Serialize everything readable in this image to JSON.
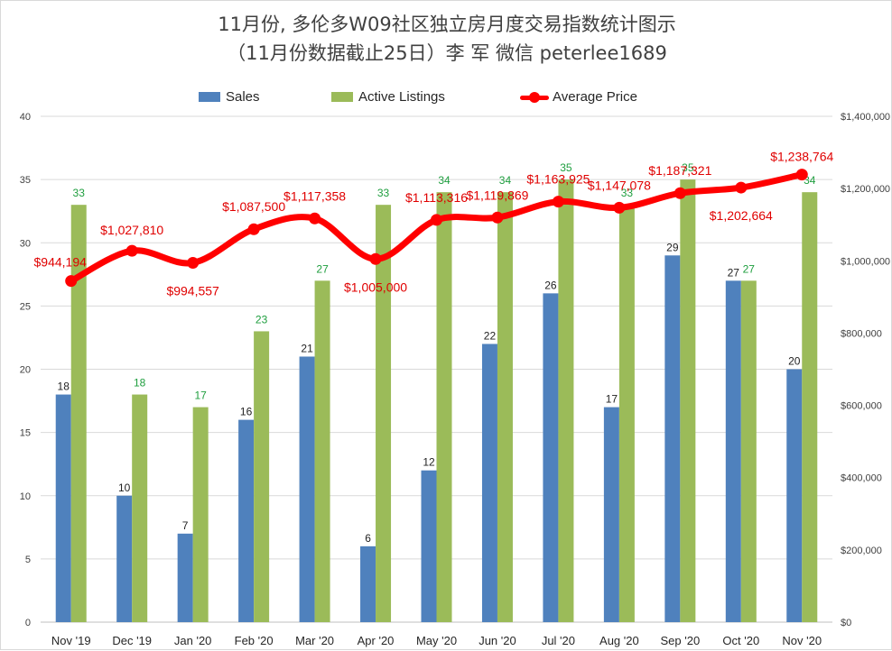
{
  "chart_data": {
    "type": "bar",
    "title_line1": "11月份, 多伦多W09社区独立房月度交易指数统计图示",
    "title_line2": "（11月份数据截止25日）李 军  微信  peterlee1689",
    "categories": [
      "Nov '19",
      "Dec '19",
      "Jan '20",
      "Feb '20",
      "Mar '20",
      "Apr '20",
      "May '20",
      "Jun '20",
      "Jul '20",
      "Aug '20",
      "Sep '20",
      "Oct '20",
      "Nov '20"
    ],
    "series": [
      {
        "name": "Sales",
        "type": "bar",
        "axis": "left",
        "color": "#4f81bd",
        "values": [
          18,
          10,
          7,
          16,
          21,
          6,
          12,
          22,
          26,
          17,
          29,
          27,
          20
        ]
      },
      {
        "name": "Active Listings",
        "type": "bar",
        "axis": "left",
        "color": "#9bbb59",
        "values": [
          33,
          18,
          17,
          23,
          27,
          33,
          34,
          34,
          35,
          33,
          35,
          27,
          34
        ]
      },
      {
        "name": "Average Price",
        "type": "line",
        "axis": "right",
        "color": "#ff0000",
        "values": [
          944194,
          1027810,
          994557,
          1087500,
          1117358,
          1005000,
          1113316,
          1119869,
          1163925,
          1147078,
          1187321,
          1202664,
          1238764
        ],
        "labels": [
          "$944,194",
          "$1,027,810",
          "$994,557",
          "$1,087,500",
          "$1,117,358",
          "$1,005,000",
          "$1,113,316",
          "$1,119,869",
          "$1,163,925",
          "$1,147,078",
          "$1,187,321",
          "$1,202,664",
          "$1,238,764"
        ]
      }
    ],
    "y_left": {
      "min": 0,
      "max": 40,
      "ticks": [
        "0",
        "5",
        "10",
        "15",
        "20",
        "25",
        "30",
        "35",
        "40"
      ]
    },
    "y_right": {
      "min": 0,
      "max": 1400000,
      "ticks": [
        "$0",
        "$200,000",
        "$400,000",
        "$600,000",
        "$800,000",
        "$1,000,000",
        "$1,200,000",
        "$1,400,000"
      ]
    },
    "grid": true,
    "legend_position": "top"
  }
}
